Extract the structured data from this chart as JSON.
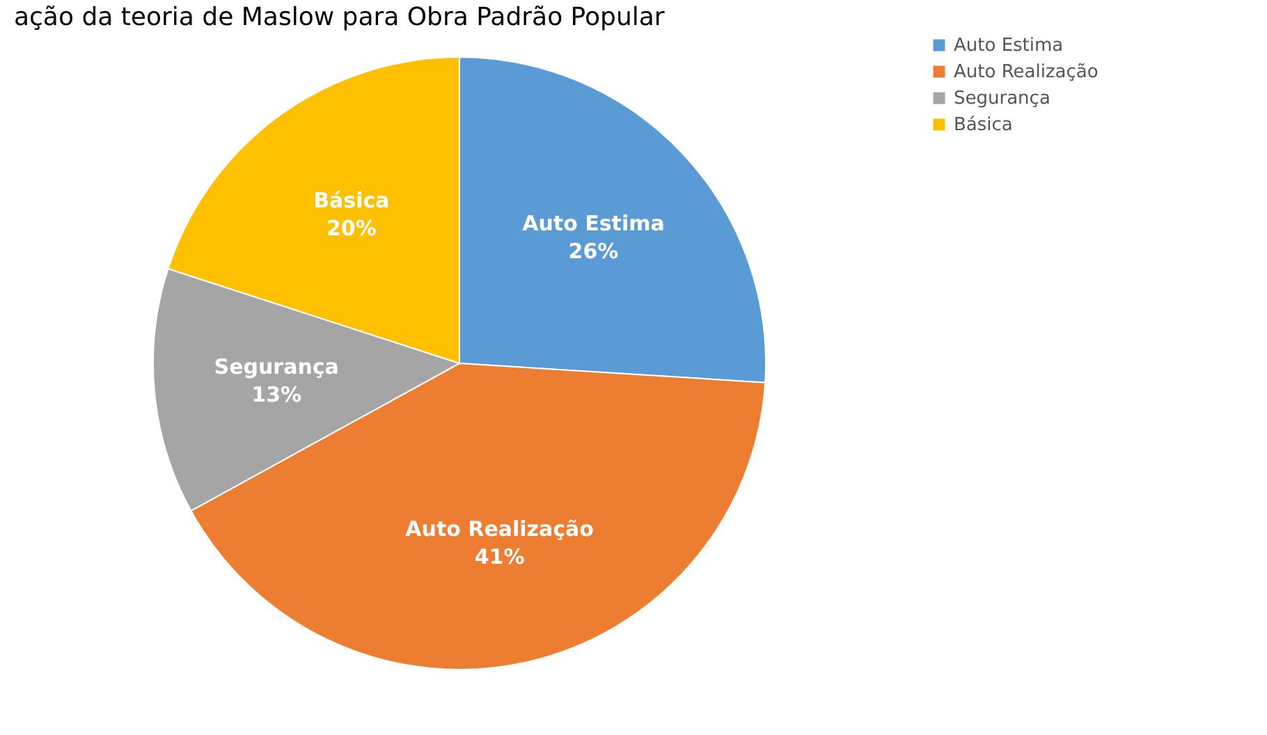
{
  "chart_data": {
    "type": "pie",
    "title": "ação da teoria de Maslow para Obra Padrão Popular",
    "categories": [
      "Auto Estima",
      "Auto Realização",
      "Segurança",
      "Básica"
    ],
    "values": [
      26,
      41,
      13,
      20
    ],
    "colors": [
      "#5b9bd5",
      "#ed7d31",
      "#a5a5a5",
      "#ffc000"
    ],
    "value_labels": [
      "26%",
      "41%",
      "13%",
      "20%"
    ],
    "legend": "right"
  }
}
